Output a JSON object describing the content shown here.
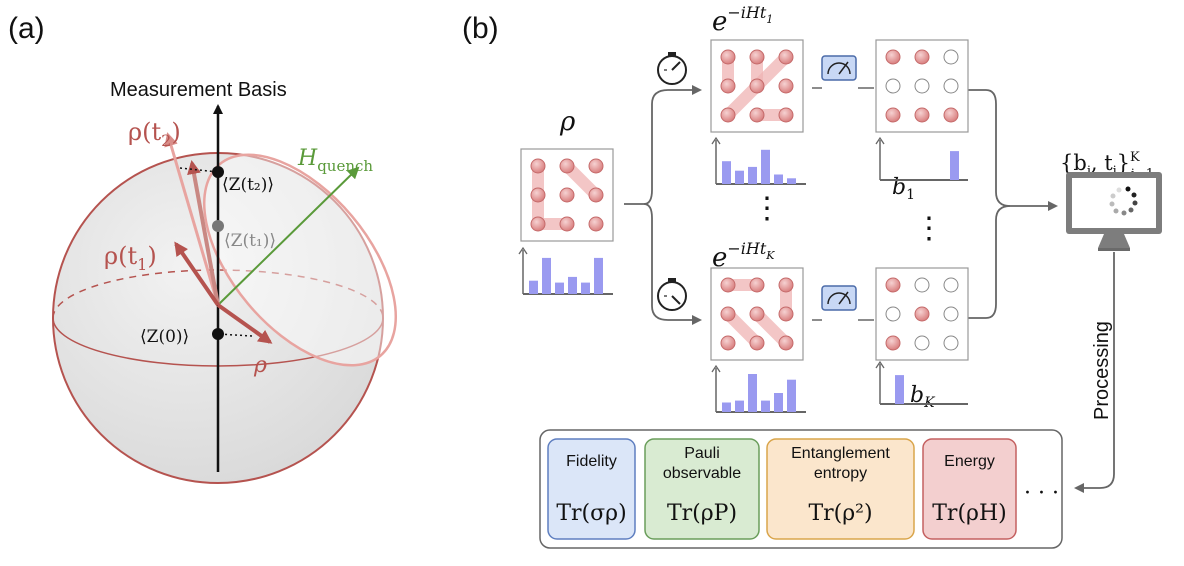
{
  "panel_a": {
    "label": "(a)",
    "basis_title": "Measurement Basis",
    "rho_t2": "ρ(t",
    "rho_t2_sub": "2",
    "rho_t1": "ρ(t",
    "rho_t1_sub": "1",
    "rho": "ρ",
    "hamiltonian": "H",
    "hamiltonian_sub": "quench",
    "z_t2": "⟨Z(t₂)⟩",
    "z_t1": "⟨Z(t₁)⟩",
    "z_0": "⟨Z(0)⟩"
  },
  "panel_b": {
    "label": "(b)",
    "rho_label": "ρ",
    "evo_top": "e",
    "evo_top_exp": "−iHt",
    "evo_top_sub": "1",
    "evo_bot": "e",
    "evo_bot_exp": "−iHt",
    "evo_bot_sub": "K",
    "b1": "b",
    "b1_sub": "1",
    "bK": "b",
    "bK_sub": "K",
    "dataset_set": "{b",
    "dataset_mid": ", t",
    "dataset_close": "}",
    "dataset_sup": "K",
    "dataset_sub": "j=1",
    "dataset_j": "j",
    "processing": "Processing",
    "ellipsis": "· · ·",
    "vdots": "⋮",
    "boxes": [
      {
        "title1": "Fidelity",
        "title2": "",
        "formula": "Tr(σρ)",
        "fill": "#dbe6f8",
        "stroke": "#5f7fc0"
      },
      {
        "title1": "Pauli",
        "title2": "observable",
        "formula": "Tr(ρP)",
        "fill": "#d9ebd2",
        "stroke": "#6a9e5b"
      },
      {
        "title1": "Entanglement",
        "title2": "entropy",
        "formula": "Tr(ρ²)",
        "fill": "#fbe6cc",
        "stroke": "#d9a54b"
      },
      {
        "title1": "Energy",
        "title2": "",
        "formula": "Tr(ρH)",
        "fill": "#f3cfcf",
        "stroke": "#c46060"
      }
    ]
  },
  "colors": {
    "rho_red": "#c0605a",
    "h_green": "#5a9a3a",
    "atom": "#e39b9b",
    "hist_bar": "#9a9af0",
    "sphere": "#e6e6e6"
  }
}
